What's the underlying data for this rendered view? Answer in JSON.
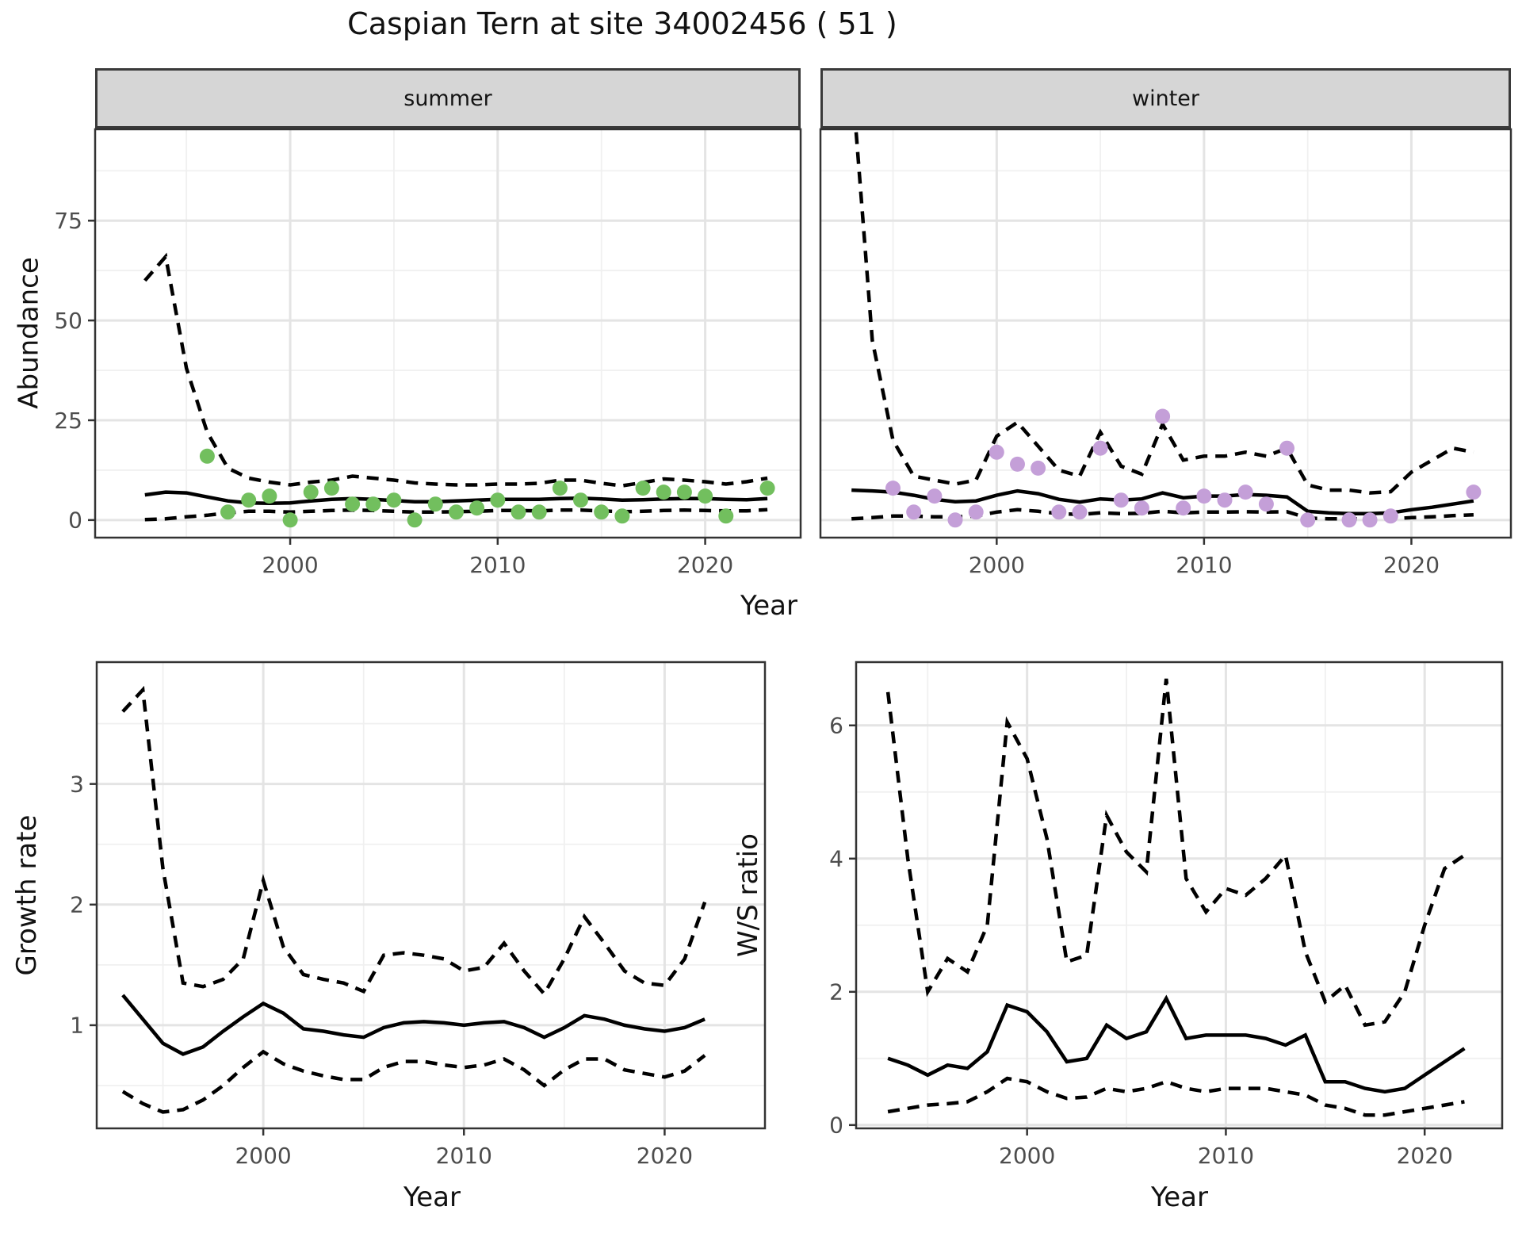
{
  "labels": {
    "title": "Caspian Tern at site 34002456 ( 51 )",
    "abundance": "Abundance",
    "year_top": "Year",
    "growth_rate": "Growth rate",
    "ws_ratio": "W/S ratio",
    "year_bottom_left": "Year",
    "year_bottom_right": "Year"
  },
  "colors": {
    "summer_point": "#72bf5e",
    "winter_point": "#c49fd8",
    "line": "#000000",
    "strip_bg": "#d6d6d6",
    "grid_major": "#e4e4e4",
    "grid_minor": "#f0f0f0",
    "axis_text": "#4d4d4d",
    "panel_border": "#333333"
  },
  "chart_data": [
    {
      "id": "abundance-summer",
      "type": "line",
      "facet_label": "summer",
      "ylabel": "Abundance",
      "xlabel": "Year",
      "xlim": [
        1990.6,
        2024.6
      ],
      "ylim": [
        -4.4,
        97.9
      ],
      "x_ticks": [
        2000,
        2010,
        2020
      ],
      "x_minor": [
        1995,
        2005,
        2015
      ],
      "y_ticks": [
        0,
        25,
        50,
        75
      ],
      "y_minor": [
        12.5,
        37.5,
        62.5,
        87.5
      ],
      "show_y_tick_labels": true,
      "legend_position": "none",
      "grid": true,
      "years": [
        1993,
        1994,
        1995,
        1996,
        1997,
        1998,
        1999,
        2000,
        2001,
        2002,
        2003,
        2004,
        2005,
        2006,
        2007,
        2008,
        2009,
        2010,
        2011,
        2012,
        2013,
        2014,
        2015,
        2016,
        2017,
        2018,
        2019,
        2020,
        2021,
        2022,
        2023
      ],
      "series": [
        {
          "name": "fit",
          "style": "solid",
          "values": [
            6.3,
            7.0,
            6.8,
            5.8,
            4.8,
            4.3,
            4.2,
            4.3,
            4.8,
            5.2,
            5.4,
            5.2,
            4.9,
            4.6,
            4.6,
            4.8,
            5.0,
            5.2,
            5.2,
            5.2,
            5.4,
            5.5,
            5.3,
            5.0,
            5.1,
            5.3,
            5.4,
            5.4,
            5.2,
            5.1,
            5.4
          ]
        },
        {
          "name": "upper_ci",
          "style": "dashed",
          "values": [
            60,
            66,
            38,
            22,
            13,
            10.5,
            9.5,
            8.8,
            9.5,
            10,
            11,
            10.5,
            10,
            9.3,
            9.0,
            8.8,
            8.8,
            9.0,
            9.0,
            9.2,
            10,
            10,
            9.2,
            8.6,
            9.4,
            10.3,
            10,
            9.6,
            9.0,
            9.6,
            10.5
          ]
        },
        {
          "name": "lower_ci",
          "style": "dashed",
          "values": [
            0.1,
            0.3,
            0.8,
            1.2,
            1.8,
            2.2,
            2.2,
            2.0,
            2.2,
            2.4,
            2.5,
            2.4,
            2.2,
            2.0,
            2.0,
            2.1,
            2.2,
            2.4,
            2.4,
            2.3,
            2.5,
            2.5,
            2.3,
            2.1,
            2.2,
            2.4,
            2.5,
            2.4,
            2.3,
            2.3,
            2.6
          ]
        }
      ],
      "points": {
        "name": "summer-observations",
        "color_key": "summer_point",
        "years": [
          1996,
          1997,
          1998,
          1999,
          2000,
          2001,
          2002,
          2003,
          2004,
          2005,
          2006,
          2007,
          2008,
          2009,
          2010,
          2011,
          2012,
          2013,
          2014,
          2015,
          2016,
          2017,
          2018,
          2019,
          2020,
          2021,
          2023
        ],
        "values": [
          16,
          2,
          5,
          6,
          0,
          7,
          8,
          4,
          4,
          5,
          0,
          4,
          2,
          3,
          5,
          2,
          2,
          8,
          5,
          2,
          1,
          8,
          7,
          7,
          6,
          1,
          8
        ]
      }
    },
    {
      "id": "abundance-winter",
      "type": "line",
      "facet_label": "winter",
      "ylabel": "Abundance",
      "xlabel": "Year",
      "xlim": [
        1991.5,
        2024.8
      ],
      "ylim": [
        -4.4,
        97.9
      ],
      "x_ticks": [
        2000,
        2010,
        2020
      ],
      "x_minor": [
        1995,
        2005,
        2015
      ],
      "y_ticks": [
        0,
        25,
        50,
        75
      ],
      "y_minor": [
        12.5,
        37.5,
        62.5,
        87.5
      ],
      "show_y_tick_labels": false,
      "legend_position": "none",
      "grid": true,
      "years": [
        1993,
        1994,
        1995,
        1996,
        1997,
        1998,
        1999,
        2000,
        2001,
        2002,
        2003,
        2004,
        2005,
        2006,
        2007,
        2008,
        2009,
        2010,
        2011,
        2012,
        2013,
        2014,
        2015,
        2016,
        2017,
        2018,
        2019,
        2020,
        2021,
        2022,
        2023
      ],
      "series": [
        {
          "name": "fit",
          "style": "solid",
          "values": [
            7.5,
            7.3,
            7.0,
            6.2,
            5.2,
            4.6,
            4.8,
            6.2,
            7.3,
            6.6,
            5.2,
            4.5,
            5.3,
            5.0,
            5.3,
            6.8,
            5.6,
            6.0,
            6.0,
            6.4,
            6.2,
            5.8,
            2.2,
            1.8,
            1.6,
            1.6,
            1.8,
            2.6,
            3.2,
            4.0,
            4.8
          ]
        },
        {
          "name": "upper_ci",
          "style": "dashed",
          "values": [
            112,
            45,
            20,
            11,
            10,
            9,
            10,
            21,
            24.5,
            18.5,
            12.5,
            11,
            22,
            13.5,
            11.5,
            24,
            15,
            16,
            16,
            17,
            16,
            18,
            8.8,
            7.5,
            7.5,
            6.8,
            7.1,
            12,
            15,
            18,
            17
          ]
        },
        {
          "name": "lower_ci",
          "style": "dashed",
          "values": [
            0.3,
            0.6,
            1.0,
            1.0,
            0.8,
            0.8,
            1.0,
            2.0,
            2.6,
            2.2,
            1.6,
            1.4,
            1.8,
            1.6,
            1.7,
            2.2,
            1.8,
            2.0,
            2.0,
            2.1,
            2.0,
            2.1,
            0.5,
            0.3,
            0.3,
            0.3,
            0.3,
            0.6,
            0.8,
            1.1,
            1.3
          ]
        }
      ],
      "points": {
        "name": "winter-observations",
        "color_key": "winter_point",
        "years": [
          1995,
          1996,
          1997,
          1998,
          1999,
          2000,
          2001,
          2002,
          2003,
          2004,
          2005,
          2006,
          2007,
          2008,
          2009,
          2010,
          2011,
          2012,
          2013,
          2014,
          2015,
          2017,
          2018,
          2019,
          2023
        ],
        "values": [
          8,
          2,
          6,
          0,
          2,
          17,
          14,
          13,
          2,
          2,
          18,
          5,
          3,
          26,
          3,
          6,
          5,
          7,
          4,
          18,
          0,
          0,
          0,
          1,
          7
        ]
      }
    },
    {
      "id": "growth-rate",
      "type": "line",
      "facet_label": "",
      "ylabel": "Growth rate",
      "xlabel": "Year",
      "xlim": [
        1991.7,
        2025.0
      ],
      "ylim": [
        0.145,
        4.01
      ],
      "x_ticks": [
        2000,
        2010,
        2020
      ],
      "x_minor": [
        1995,
        2005,
        2015
      ],
      "y_ticks": [
        1,
        2,
        3
      ],
      "y_minor": [
        0.5,
        1.5,
        2.5,
        3.5
      ],
      "show_y_tick_labels": true,
      "legend_position": "none",
      "grid": true,
      "years": [
        1993,
        1994,
        1995,
        1996,
        1997,
        1998,
        1999,
        2000,
        2001,
        2002,
        2003,
        2004,
        2005,
        2006,
        2007,
        2008,
        2009,
        2010,
        2011,
        2012,
        2013,
        2014,
        2015,
        2016,
        2017,
        2018,
        2019,
        2020,
        2021,
        2022
      ],
      "series": [
        {
          "name": "fit",
          "style": "solid",
          "values": [
            1.25,
            1.05,
            0.85,
            0.76,
            0.82,
            0.95,
            1.07,
            1.18,
            1.1,
            0.97,
            0.95,
            0.92,
            0.9,
            0.98,
            1.02,
            1.03,
            1.02,
            1.0,
            1.02,
            1.03,
            0.98,
            0.9,
            0.98,
            1.08,
            1.05,
            1.0,
            0.97,
            0.95,
            0.98,
            1.05
          ]
        },
        {
          "name": "upper_ci",
          "style": "dashed",
          "values": [
            3.6,
            3.78,
            2.3,
            1.35,
            1.32,
            1.38,
            1.55,
            2.2,
            1.65,
            1.42,
            1.38,
            1.35,
            1.28,
            1.58,
            1.6,
            1.58,
            1.55,
            1.45,
            1.48,
            1.68,
            1.45,
            1.26,
            1.55,
            1.9,
            1.68,
            1.45,
            1.35,
            1.33,
            1.55,
            2.02
          ]
        },
        {
          "name": "lower_ci",
          "style": "dashed",
          "values": [
            0.45,
            0.35,
            0.28,
            0.3,
            0.38,
            0.5,
            0.65,
            0.78,
            0.68,
            0.62,
            0.58,
            0.55,
            0.55,
            0.65,
            0.7,
            0.7,
            0.67,
            0.65,
            0.67,
            0.72,
            0.63,
            0.5,
            0.63,
            0.72,
            0.72,
            0.63,
            0.6,
            0.57,
            0.62,
            0.75
          ]
        }
      ],
      "points": null
    },
    {
      "id": "ws-ratio",
      "type": "line",
      "facet_label": "",
      "ylabel": "W/S ratio",
      "xlabel": "Year",
      "xlim": [
        1991.4,
        2023.9
      ],
      "ylim": [
        -0.05,
        6.95
      ],
      "x_ticks": [
        2000,
        2010,
        2020
      ],
      "x_minor": [
        1995,
        2005,
        2015
      ],
      "y_ticks": [
        0,
        2,
        4,
        6
      ],
      "y_minor": [
        1,
        3,
        5
      ],
      "show_y_tick_labels": true,
      "legend_position": "none",
      "grid": true,
      "years": [
        1993,
        1994,
        1995,
        1996,
        1997,
        1998,
        1999,
        2000,
        2001,
        2002,
        2003,
        2004,
        2005,
        2006,
        2007,
        2008,
        2009,
        2010,
        2011,
        2012,
        2013,
        2014,
        2015,
        2016,
        2017,
        2018,
        2019,
        2020,
        2021,
        2022
      ],
      "series": [
        {
          "name": "fit",
          "style": "solid",
          "values": [
            1.0,
            0.9,
            0.75,
            0.9,
            0.85,
            1.1,
            1.8,
            1.7,
            1.4,
            0.95,
            1.0,
            1.5,
            1.3,
            1.4,
            1.9,
            1.3,
            1.35,
            1.35,
            1.35,
            1.3,
            1.2,
            1.35,
            0.65,
            0.65,
            0.55,
            0.5,
            0.55,
            0.75,
            0.95,
            1.15
          ]
        },
        {
          "name": "upper_ci",
          "style": "dashed",
          "values": [
            6.5,
            4.0,
            2.0,
            2.5,
            2.3,
            3.0,
            6.05,
            5.5,
            4.3,
            2.45,
            2.55,
            4.65,
            4.1,
            3.8,
            6.7,
            3.7,
            3.2,
            3.55,
            3.45,
            3.7,
            4.05,
            2.6,
            1.85,
            2.1,
            1.5,
            1.55,
            2.0,
            3.0,
            3.85,
            4.05
          ]
        },
        {
          "name": "lower_ci",
          "style": "dashed",
          "values": [
            0.2,
            0.25,
            0.3,
            0.32,
            0.35,
            0.5,
            0.7,
            0.65,
            0.5,
            0.4,
            0.42,
            0.55,
            0.5,
            0.55,
            0.65,
            0.55,
            0.5,
            0.55,
            0.55,
            0.55,
            0.5,
            0.45,
            0.3,
            0.25,
            0.15,
            0.15,
            0.2,
            0.25,
            0.3,
            0.35
          ]
        }
      ],
      "points": null
    }
  ]
}
